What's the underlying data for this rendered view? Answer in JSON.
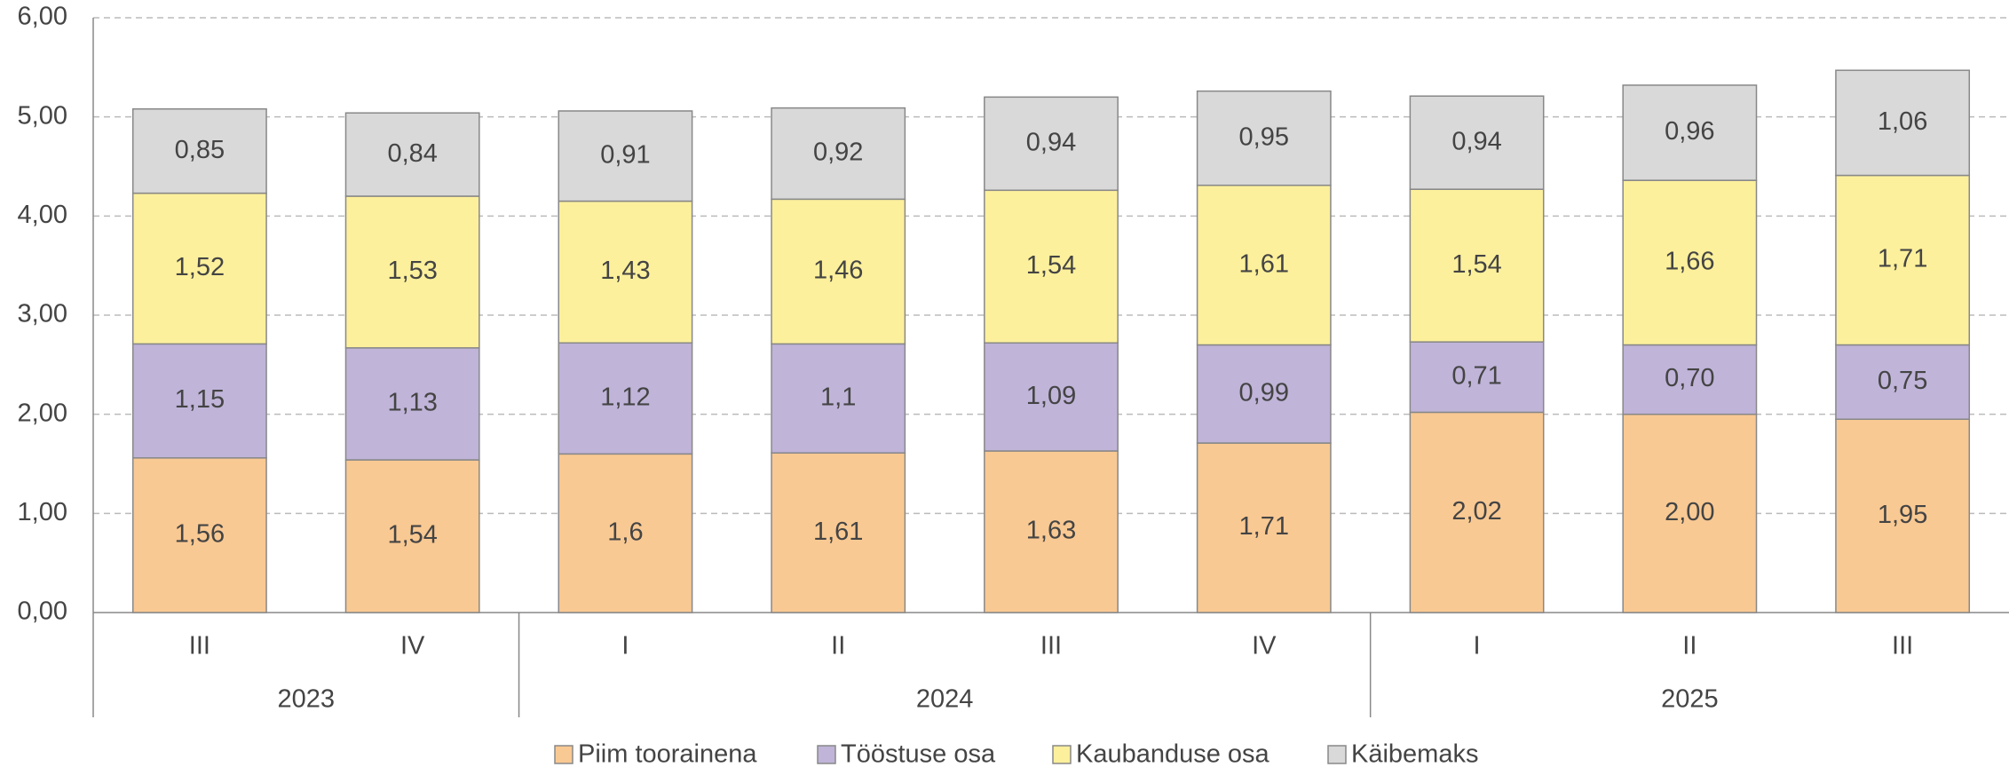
{
  "chart_data": {
    "type": "stacked_bar",
    "categories": [
      "III",
      "IV",
      "I",
      "II",
      "III",
      "IV",
      "I",
      "II",
      "III"
    ],
    "groups": [
      {
        "name": "2023",
        "size": 2
      },
      {
        "name": "2024",
        "size": 4
      },
      {
        "name": "2025",
        "size": 3
      }
    ],
    "series": [
      {
        "name": "Piim toorainena",
        "color": "#f9c993",
        "values": [
          1.56,
          1.54,
          1.6,
          1.61,
          1.63,
          1.71,
          2.02,
          2.0,
          1.95
        ],
        "value_labels": [
          "1,56",
          "1,54",
          "1,6",
          "1,61",
          "1,63",
          "1,71",
          "2,02",
          "2,00",
          "1,95"
        ]
      },
      {
        "name": "Tööstuse osa",
        "color": "#c0b4d9",
        "values": [
          1.15,
          1.13,
          1.12,
          1.1,
          1.09,
          0.99,
          0.71,
          0.7,
          0.75
        ],
        "value_labels": [
          "1,15",
          "1,13",
          "1,12",
          "1,1",
          "1,09",
          "0,99",
          "0,71",
          "0,70",
          "0,75"
        ]
      },
      {
        "name": "Kaubanduse osa",
        "color": "#fdf09c",
        "values": [
          1.52,
          1.53,
          1.43,
          1.46,
          1.54,
          1.61,
          1.54,
          1.66,
          1.71
        ],
        "value_labels": [
          "1,52",
          "1,53",
          "1,43",
          "1,46",
          "1,54",
          "1,61",
          "1,54",
          "1,66",
          "1,71"
        ]
      },
      {
        "name": "Käibemaks",
        "color": "#d9d9d9",
        "values": [
          0.85,
          0.84,
          0.91,
          0.92,
          0.94,
          0.95,
          0.94,
          0.96,
          1.06
        ],
        "value_labels": [
          "0,85",
          "0,84",
          "0,91",
          "0,92",
          "0,94",
          "0,95",
          "0,94",
          "0,96",
          "1,06"
        ]
      }
    ],
    "ylim": [
      0,
      6
    ],
    "yticks": [
      {
        "value": 0,
        "label": "0,00"
      },
      {
        "value": 1,
        "label": "1,00"
      },
      {
        "value": 2,
        "label": "2,00"
      },
      {
        "value": 3,
        "label": "3,00"
      },
      {
        "value": 4,
        "label": "4,00"
      },
      {
        "value": 5,
        "label": "5,00"
      },
      {
        "value": 6,
        "label": "6,00"
      }
    ],
    "grid": true,
    "legend": "bottom"
  }
}
